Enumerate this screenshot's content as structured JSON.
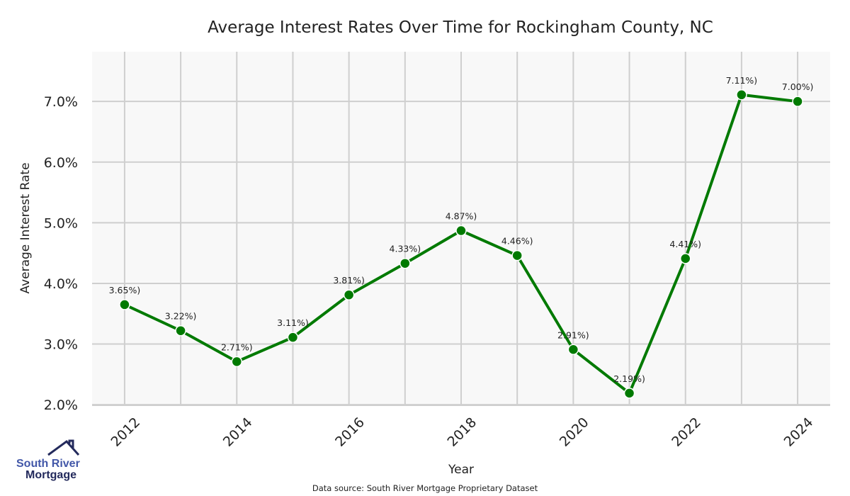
{
  "chart_data": {
    "type": "line",
    "title": "Average Interest Rates Over Time for Rockingham County, NC",
    "xlabel": "Year",
    "ylabel": "Average Interest Rate",
    "x": [
      2012,
      2013,
      2014,
      2015,
      2016,
      2017,
      2018,
      2019,
      2020,
      2021,
      2022,
      2023,
      2024
    ],
    "series": [
      {
        "name": "Average Interest Rate",
        "values": [
          3.65,
          3.22,
          2.71,
          3.11,
          3.81,
          4.33,
          4.87,
          4.46,
          2.91,
          2.19,
          4.41,
          7.11,
          7.0
        ],
        "labels": [
          "3.65%)",
          "3.22%)",
          "2.71%)",
          "3.11%)",
          "3.81%)",
          "4.33%)",
          "4.87%)",
          "4.46%)",
          "2.91%)",
          "2.19%)",
          "4.41%)",
          "7.11%)",
          "7.00%)"
        ],
        "color": "#007a00"
      }
    ],
    "xticks": [
      2012,
      2014,
      2016,
      2018,
      2020,
      2022,
      2024
    ],
    "xtick_labels": [
      "2012",
      "2014",
      "2016",
      "2018",
      "2020",
      "2022",
      "2024"
    ],
    "yticks": [
      2,
      3,
      4,
      5,
      6,
      7
    ],
    "ytick_labels": [
      "2.0%",
      "3.0%",
      "4.0%",
      "5.0%",
      "6.0%",
      "7.0%"
    ],
    "xlim": [
      2011.42,
      2024.58
    ],
    "ylim": [
      1.99,
      7.82
    ],
    "grid": true,
    "background": "#f8f8f8"
  },
  "footer": {
    "source": "Data source: South River Mortgage Proprietary Dataset"
  },
  "logo": {
    "line1": "South River",
    "line2": "Mortgage"
  }
}
